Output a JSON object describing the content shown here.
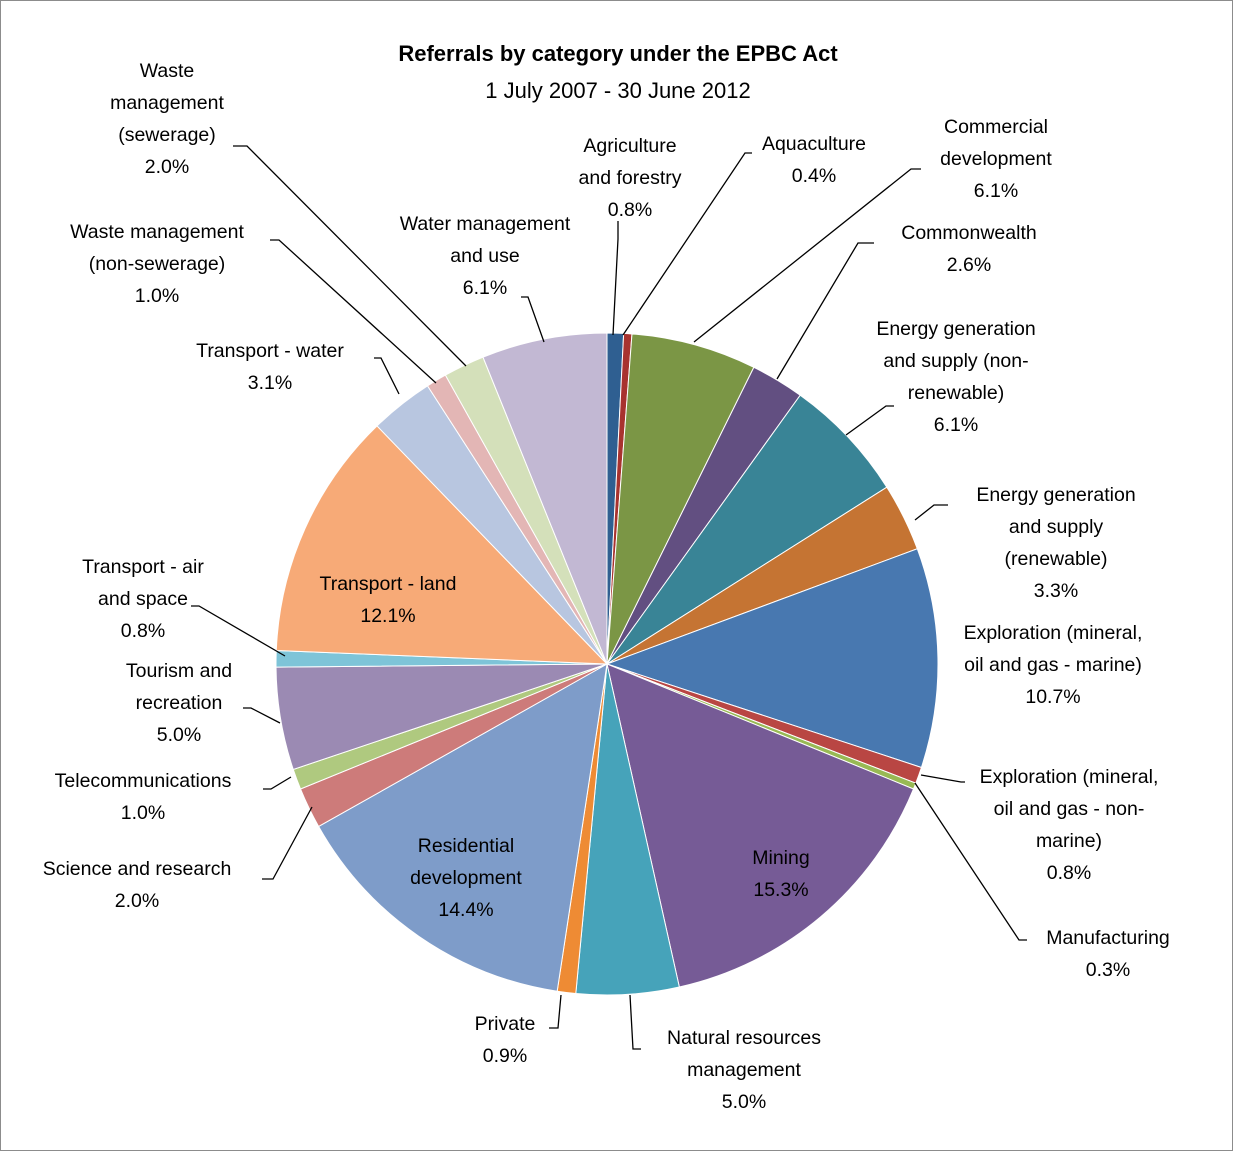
{
  "chart_data": {
    "type": "pie",
    "title": "Referrals by category under the EPBC Act",
    "subtitle": "1 July 2007 - 30 June 2012",
    "slices": [
      {
        "lines": [
          "Agriculture",
          "and forestry",
          "0.8%"
        ],
        "value": 0.8,
        "color": "#2F5F91"
      },
      {
        "lines": [
          "Aquaculture",
          "0.4%"
        ],
        "value": 0.4,
        "color": "#A8332F"
      },
      {
        "lines": [
          "Commercial",
          "development",
          "6.1%"
        ],
        "value": 6.1,
        "color": "#7B9645"
      },
      {
        "lines": [
          "Commonwealth",
          "2.6%"
        ],
        "value": 2.6,
        "color": "#624F81"
      },
      {
        "lines": [
          "Energy generation",
          "and supply (non-",
          "renewable)",
          "6.1%"
        ],
        "value": 6.1,
        "color": "#398496"
      },
      {
        "lines": [
          "Energy generation",
          "and supply",
          "(renewable)",
          "3.3%"
        ],
        "value": 3.3,
        "color": "#C57433"
      },
      {
        "lines": [
          "Exploration (mineral,",
          "oil and gas - marine)",
          "10.7%"
        ],
        "value": 10.7,
        "color": "#4878B0"
      },
      {
        "lines": [
          "Exploration (mineral,",
          "oil and gas - non-",
          "marine)",
          "0.8%"
        ],
        "value": 0.8,
        "color": "#B94643"
      },
      {
        "lines": [
          "Manufacturing",
          "0.3%"
        ],
        "value": 0.3,
        "color": "#98B954"
      },
      {
        "lines": [
          "Mining",
          "15.3%"
        ],
        "value": 15.3,
        "color": "#765B96"
      },
      {
        "lines": [
          "Natural resources",
          "management",
          "5.0%"
        ],
        "value": 5.0,
        "color": "#46A3BA"
      },
      {
        "lines": [
          "Private",
          "0.9%"
        ],
        "value": 0.9,
        "color": "#EE8B34"
      },
      {
        "lines": [
          "Residential",
          "development",
          "14.4%"
        ],
        "value": 14.4,
        "color": "#7E9CC9"
      },
      {
        "lines": [
          "Science and research",
          "2.0%"
        ],
        "value": 2.0,
        "color": "#CD7B7A"
      },
      {
        "lines": [
          "Telecommunications",
          "1.0%"
        ],
        "value": 1.0,
        "color": "#AFC97F"
      },
      {
        "lines": [
          "Tourism and",
          "recreation",
          "5.0%"
        ],
        "value": 5.0,
        "color": "#9B8AB3"
      },
      {
        "lines": [
          "Transport - air",
          "and space",
          "0.8%"
        ],
        "value": 0.8,
        "color": "#7EC4D8"
      },
      {
        "lines": [
          "Transport - land",
          "12.1%"
        ],
        "value": 12.1,
        "color": "#F7AA77"
      },
      {
        "lines": [
          "Transport - water",
          "3.1%"
        ],
        "value": 3.1,
        "color": "#B8C6E0"
      },
      {
        "lines": [
          "Waste management",
          "(non-sewerage)",
          "1.0%"
        ],
        "value": 1.0,
        "color": "#E3B6B5"
      },
      {
        "lines": [
          "Waste",
          "management",
          "(sewerage)",
          "2.0%"
        ],
        "value": 2.0,
        "color": "#D4E0BA"
      },
      {
        "lines": [
          "Water management",
          "and use",
          "6.1%"
        ],
        "value": 6.1,
        "color": "#C2B8D3"
      }
    ]
  }
}
